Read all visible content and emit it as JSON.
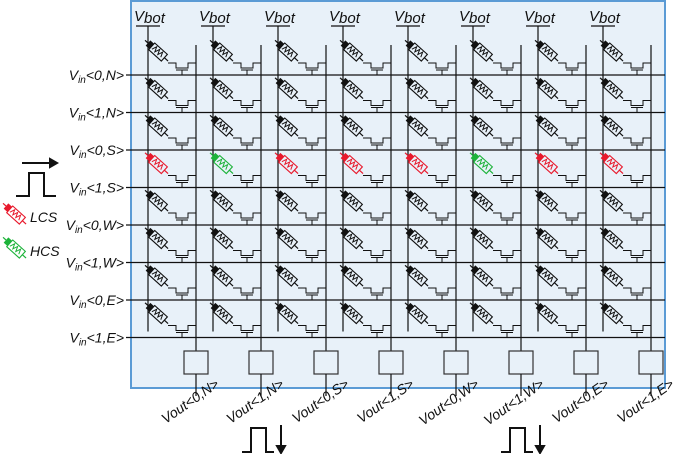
{
  "top_label": {
    "main": "V",
    "sub": "bot"
  },
  "columns": 8,
  "row_labels": [
    {
      "main": "V",
      "sub": "in",
      "suffix": "<0,N>"
    },
    {
      "main": "V",
      "sub": "in",
      "suffix": "<1,N>"
    },
    {
      "main": "V",
      "sub": "in",
      "suffix": "<0,S>"
    },
    {
      "main": "V",
      "sub": "in",
      "suffix": "<1,S>"
    },
    {
      "main": "V",
      "sub": "in",
      "suffix": "<0,W>"
    },
    {
      "main": "V",
      "sub": "in",
      "suffix": "<1,W>"
    },
    {
      "main": "V",
      "sub": "in",
      "suffix": "<0,E>"
    },
    {
      "main": "V",
      "sub": "in",
      "suffix": "<1,E>"
    }
  ],
  "output_labels": [
    "Vout<0,N>",
    "Vout<1,N>",
    "Vout<0,S>",
    "Vout<1,S>",
    "Vout<0,W>",
    "Vout<1,W>",
    "Vout<0,E>",
    "Vout<1,E>"
  ],
  "highlight_row": 3,
  "highlight_states": [
    "LCS",
    "HCS",
    "LCS",
    "LCS",
    "LCS",
    "HCS",
    "LCS",
    "LCS"
  ],
  "legend": {
    "lcs": {
      "label": "LCS",
      "color": "#e8192c"
    },
    "hcs": {
      "label": "HCS",
      "color": "#1db33a"
    }
  },
  "colors": {
    "panel_fill": "#e8f1f9",
    "panel_border": "#5b9bd5",
    "wire": "#111111"
  }
}
